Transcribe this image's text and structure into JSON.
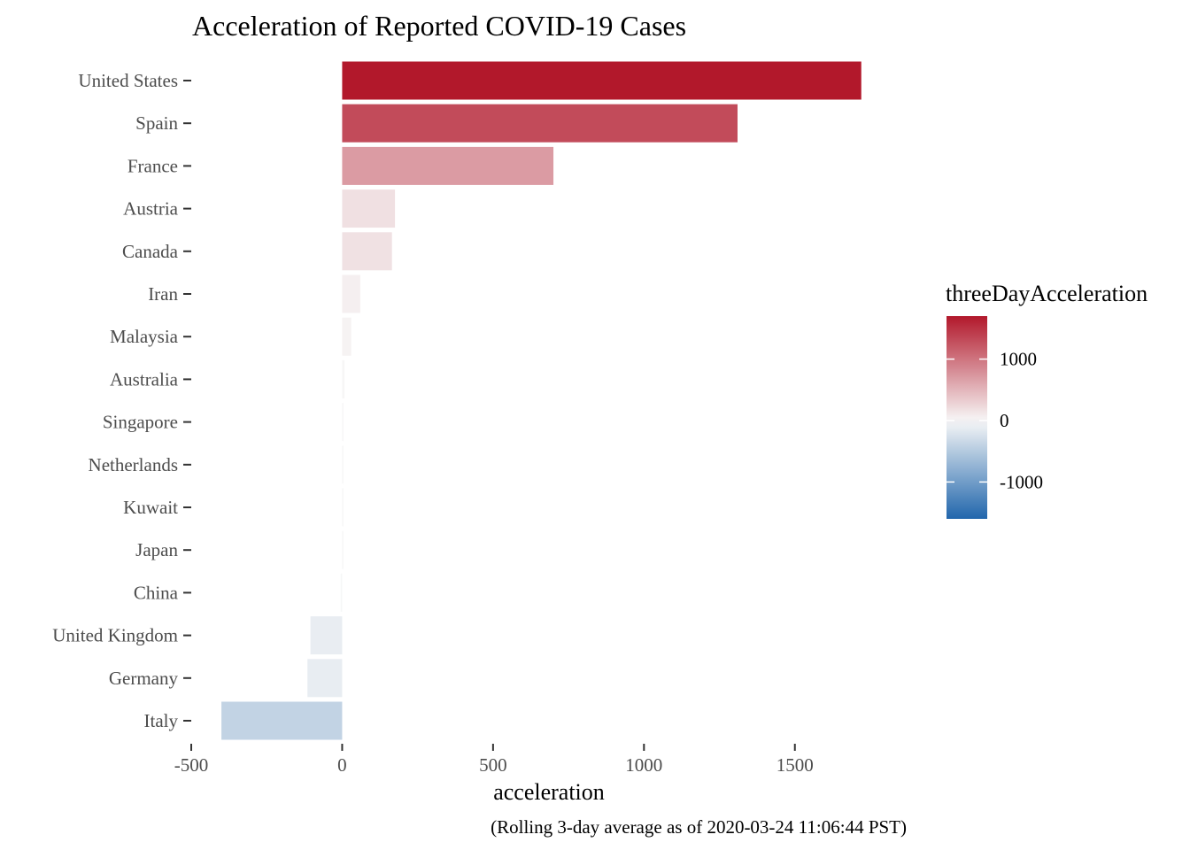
{
  "chart_data": {
    "type": "bar",
    "orientation": "horizontal",
    "title": "Acceleration of Reported COVID-19 Cases",
    "xlabel": "acceleration",
    "ylabel": "",
    "caption": "(Rolling 3-day average as of 2020-03-24 11:06:44 PST)",
    "xlim": [
      -500,
      1800
    ],
    "xticks": [
      -500,
      0,
      500,
      1000,
      1500
    ],
    "xtick_labels": [
      "-500",
      "0",
      "500",
      "1000",
      "1500"
    ],
    "grid": false,
    "categories": [
      "United States",
      "Spain",
      "France",
      "Austria",
      "Canada",
      "Iran",
      "Malaysia",
      "Australia",
      "Singapore",
      "Netherlands",
      "Kuwait",
      "Japan",
      "China",
      "United Kingdom",
      "Germany",
      "Italy"
    ],
    "values": [
      1720,
      1310,
      700,
      175,
      165,
      60,
      30,
      8,
      4,
      3,
      2,
      1,
      -5,
      -105,
      -115,
      -400
    ],
    "legend": {
      "title": "threeDayAcceleration",
      "placement": "right",
      "type": "diverging-gradient",
      "range": [
        -1600,
        1700
      ],
      "breaks": [
        1000,
        0,
        -1000
      ],
      "break_labels": [
        "1000",
        "0",
        "-1000"
      ],
      "low_color": "#2166AC",
      "mid_color": "#F7F7F7",
      "high_color": "#B2182B"
    }
  }
}
